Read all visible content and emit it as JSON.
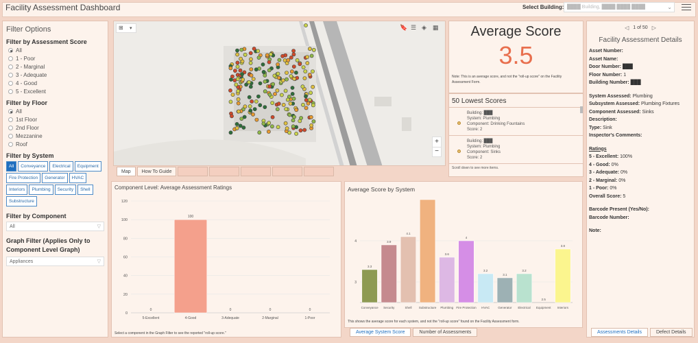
{
  "header": {
    "title": "Facility Assessment Dashboard",
    "select_label": "Select Building:",
    "select_value": "████ Building, ████ ████ ████",
    "menu_icon": "hamburger-icon"
  },
  "filters": {
    "title": "Filter Options",
    "score_heading": "Filter by Assessment Score",
    "score_options": [
      "All",
      "1 - Poor",
      "2 - Marginal",
      "3 - Adequate",
      "4 - Good",
      "5 - Excellent"
    ],
    "floor_heading": "Filter by Floor",
    "floor_options": [
      "All",
      "1st Floor",
      "2nd Floor",
      "Mezzanine",
      "Roof"
    ],
    "system_heading": "Filter by System",
    "systems": [
      "All",
      "Conveyance",
      "Electrical",
      "Equipment",
      "Fire Protection",
      "Generator",
      "HVAC",
      "Interiors",
      "Plumbing",
      "Security",
      "Shell",
      "Substructure"
    ],
    "component_heading": "Filter by Component",
    "component_value": "All",
    "graph_heading": "Graph Filter (Applies Only to Component Level Graph)",
    "graph_value": "Appliances"
  },
  "map_tabs": [
    "Map",
    "How To Guide",
    "████",
    "████",
    "████",
    "████",
    "████"
  ],
  "average": {
    "title": "Average Score",
    "value": "3.5",
    "note": "Note: This is an average score, and not the \"roll-up score\" on the Facility Assessment Form."
  },
  "lowest": {
    "title": "50 Lowest Scores",
    "items": [
      {
        "building": "Building: ███",
        "system": "System: Plumbing",
        "component": "Component: Drinking Fountains",
        "score": "Score: 2"
      },
      {
        "building": "Building: ███",
        "system": "System: Plumbing",
        "component": "Component: Sinks",
        "score": "Score: 2"
      }
    ],
    "footer": "Scroll down to see more items."
  },
  "details": {
    "pager": "1 of 50",
    "title": "Facility Assessment Details",
    "fields": [
      {
        "label": "Asset Number:",
        "value": ""
      },
      {
        "label": "Asset Name:",
        "value": ""
      },
      {
        "label": "Door Number:",
        "value": "███"
      },
      {
        "label": "Floor Number:",
        "value": "1"
      },
      {
        "label": "Building Number:",
        "value": "███"
      }
    ],
    "fields2": [
      {
        "label": "System Assessed:",
        "value": "Plumbing"
      },
      {
        "label": "Subsystem Assessed:",
        "value": "Plumbing Fixtures"
      },
      {
        "label": "Component Assessed:",
        "value": "Sinks"
      },
      {
        "label": "Description:",
        "value": ""
      },
      {
        "label": "Type:",
        "value": "Sink"
      },
      {
        "label": "Inspector's Comments:",
        "value": ""
      }
    ],
    "ratings_heading": "Ratings",
    "ratings": [
      {
        "label": "5 - Excellent:",
        "value": "100%"
      },
      {
        "label": "4 - Good:",
        "value": "0%"
      },
      {
        "label": "3 - Adequate:",
        "value": "0%"
      },
      {
        "label": "2 - Marginal:",
        "value": "0%"
      },
      {
        "label": "1 - Poor:",
        "value": "0%"
      },
      {
        "label": "Overall Score:",
        "value": "5"
      }
    ],
    "fields3": [
      {
        "label": "Barcode Present (Yes/No):",
        "value": ""
      },
      {
        "label": "Barcode Number:",
        "value": ""
      }
    ],
    "note_label": "Note:"
  },
  "component_chart": {
    "title": "Component Level: Average Assessment Ratings",
    "note": "Select a component in the Graph Filter to see the reported \"roll-up score.\""
  },
  "system_chart": {
    "title": "Average Score by System",
    "note": "This shows the average score for each system, and not the \"roll-up score\" found on the Facility Assessment form."
  },
  "bottom_tabs": [
    "Average System Score",
    "Number of Assessments"
  ],
  "right_tabs": [
    "Assessments Details",
    "Defect Details"
  ],
  "chart_data": [
    {
      "type": "bar",
      "title": "Component Level: Average Assessment Ratings",
      "categories": [
        "5-Excellent",
        "4-Good",
        "3-Adequate",
        "2-Marginal",
        "1-Poor"
      ],
      "values": [
        0,
        100,
        0,
        0,
        0
      ],
      "ylim": [
        0,
        120
      ],
      "yticks": [
        0,
        20,
        40,
        60,
        80,
        100,
        120
      ],
      "colors": [
        "#f4a08c",
        "#f4a08c",
        "#f4a08c",
        "#f4a08c",
        "#f4a08c"
      ]
    },
    {
      "type": "bar",
      "title": "Average Score by System",
      "categories": [
        "Conveyance",
        "Security",
        "Shell",
        "Substructure",
        "Plumbing",
        "Fire Protection",
        "HVAC",
        "Generator",
        "Electrical",
        "Equipment",
        "Interiors"
      ],
      "values": [
        3.3,
        3.9,
        4.1,
        5.0,
        3.6,
        4.0,
        3.2,
        3.1,
        3.2,
        2.5,
        3.8
      ],
      "labels": [
        "3.3",
        "3.9",
        "4.1",
        "",
        "3.6",
        "4",
        "3.2",
        "3.1",
        "3.2",
        "2.5",
        "3.8"
      ],
      "ylim": [
        2.5,
        5.0
      ],
      "yticks": [
        3,
        4
      ],
      "colors": [
        "#8e9a52",
        "#c58a8e",
        "#e3c0b0",
        "#f0b27f",
        "#ddb8e4",
        "#d58ee6",
        "#c8e9f4",
        "#9db1b4",
        "#b9e2cf",
        "#f0d3c6",
        "#fbf58e"
      ]
    }
  ]
}
